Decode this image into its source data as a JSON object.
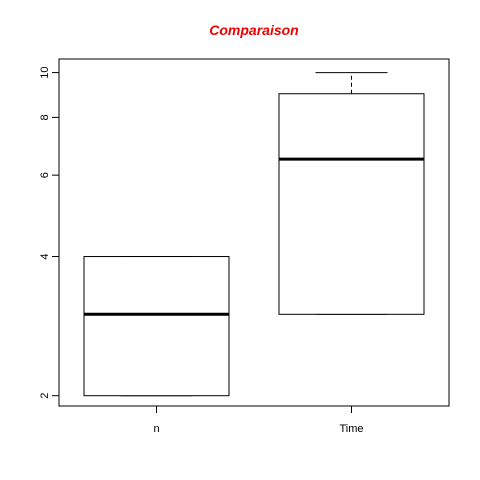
{
  "chart_data": {
    "type": "boxplot",
    "title": "Comparaison",
    "title_color": "#ee0000",
    "xlabel": "",
    "ylabel": "",
    "y_scale": "log",
    "ylim": [
      1.9,
      10.7
    ],
    "y_ticks": [
      2,
      4,
      6,
      8,
      10
    ],
    "grid": false,
    "categories": [
      "n",
      "Time"
    ],
    "boxes": [
      {
        "category": "n",
        "min": 2,
        "q1": 2,
        "median": 3,
        "q3": 4,
        "max": 4
      },
      {
        "category": "Time",
        "min": 3,
        "q1": 3,
        "median": 6.5,
        "q3": 9,
        "max": 10
      }
    ]
  }
}
